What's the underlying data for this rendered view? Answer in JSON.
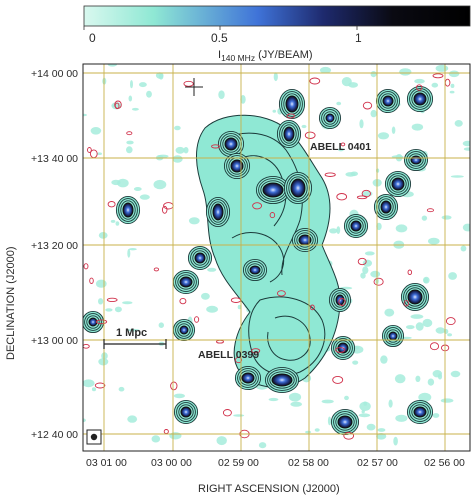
{
  "colorbar": {
    "ticks": [
      "0",
      "0.5",
      "1"
    ],
    "label_prefix": "I",
    "label_sub": "140 MHz",
    "label_suffix": " (JY/BEAM)",
    "gradient": [
      "#d9f8ef",
      "#8fe8d4",
      "#3f73d8",
      "#1e2a6e",
      "#0a0a12",
      "#000000"
    ]
  },
  "axes": {
    "ylabel": "DECLINATION (J2000)",
    "xlabel": "RIGHT ASCENSION (J2000)",
    "yticks": [
      "+14 00 00",
      "+13 40 00",
      "+13 20 00",
      "+13 00 00",
      "+12 40 00"
    ],
    "xticks": [
      "03 01 00",
      "03 00 00",
      "02 59 00",
      "02 58 00",
      "02 57 00",
      "02 56 00"
    ]
  },
  "annotations": {
    "cluster_north": "ABELL 0401",
    "cluster_south": "ABELL 0399",
    "scalebar": "1 Mpc"
  },
  "colors": {
    "emission_fill": "#8fe8d4",
    "contour": "#1b3a3a",
    "negative_contour": "#d0304a",
    "grid": "#c8b24a",
    "source_core": "#2b4fbf"
  }
}
